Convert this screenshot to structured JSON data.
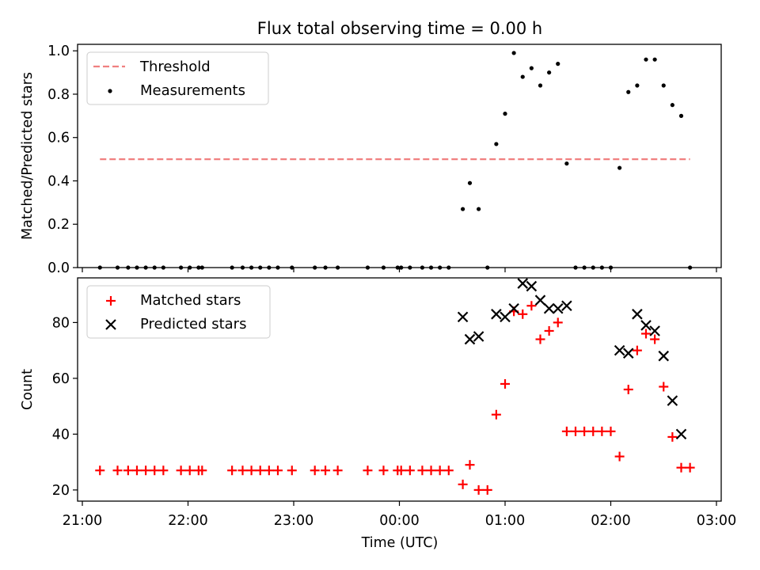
{
  "title": "Flux total observing time = 0.00 h",
  "xlabel": "Time (UTC)",
  "x_ticks": [
    "21:00",
    "22:00",
    "23:00",
    "00:00",
    "01:00",
    "02:00",
    "03:00"
  ],
  "chart_data": [
    {
      "type": "scatter",
      "panel": "top",
      "ylabel": "Matched/Predicted stars",
      "xlim": [
        "21:00",
        "03:00"
      ],
      "ylim": [
        0,
        1.03
      ],
      "y_ticks": [
        "0.0",
        "0.2",
        "0.4",
        "0.6",
        "0.8",
        "1.0"
      ],
      "legend_position": "top-left",
      "series": [
        {
          "name": "Threshold",
          "kind": "dashed-line",
          "color": "#f08080",
          "x": [
            "21:10",
            "02:45"
          ],
          "y": [
            0.5,
            0.5
          ]
        },
        {
          "name": "Measurements",
          "kind": "dot",
          "color": "#000000",
          "x": [
            "21:10",
            "21:20",
            "21:26",
            "21:31",
            "21:36",
            "21:41",
            "21:46",
            "21:56",
            "22:01",
            "22:06",
            "22:08",
            "22:25",
            "22:31",
            "22:36",
            "22:41",
            "22:46",
            "22:51",
            "22:59",
            "23:12",
            "23:18",
            "23:25",
            "23:42",
            "23:51",
            "23:59",
            "24:01",
            "24:06",
            "24:13",
            "24:18",
            "24:23",
            "24:28",
            "24:36",
            "24:40",
            "24:45",
            "24:50",
            "24:55",
            "25:00",
            "25:05",
            "25:10",
            "25:15",
            "25:20",
            "25:25",
            "25:30",
            "25:35",
            "25:40",
            "25:45",
            "25:50",
            "25:55",
            "26:00",
            "26:05",
            "26:10",
            "26:15",
            "26:20",
            "26:25",
            "26:30",
            "26:35",
            "26:40",
            "26:45"
          ],
          "y": [
            0,
            0,
            0,
            0,
            0,
            0,
            0,
            0,
            0,
            0,
            0,
            0,
            0,
            0,
            0,
            0,
            0,
            0,
            0,
            0,
            0,
            0,
            0,
            0,
            0,
            0,
            0,
            0,
            0,
            0,
            0.27,
            0.39,
            0.27,
            0,
            0.57,
            0.71,
            0.99,
            0.88,
            0.92,
            0.84,
            0.9,
            0.94,
            0.48,
            0,
            0,
            0,
            0,
            0,
            0.46,
            0.81,
            0.84,
            0.96,
            0.96,
            0.84,
            0.75,
            0.7,
            0
          ]
        }
      ]
    },
    {
      "type": "scatter",
      "panel": "bottom",
      "ylabel": "Count",
      "xlim": [
        "21:00",
        "03:00"
      ],
      "ylim": [
        16,
        96
      ],
      "y_ticks": [
        "20",
        "40",
        "60",
        "80"
      ],
      "legend_position": "top-left",
      "series": [
        {
          "name": "Matched stars",
          "kind": "plus",
          "color": "#ff0000",
          "x": [
            "21:10",
            "21:20",
            "21:26",
            "21:31",
            "21:36",
            "21:41",
            "21:46",
            "21:56",
            "22:01",
            "22:06",
            "22:08",
            "22:25",
            "22:31",
            "22:36",
            "22:41",
            "22:46",
            "22:51",
            "22:59",
            "23:12",
            "23:18",
            "23:25",
            "23:42",
            "23:51",
            "23:59",
            "24:01",
            "24:06",
            "24:13",
            "24:18",
            "24:23",
            "24:28",
            "24:36",
            "24:40",
            "24:45",
            "24:50",
            "24:55",
            "25:00",
            "25:05",
            "25:10",
            "25:15",
            "25:20",
            "25:25",
            "25:30",
            "25:35",
            "25:40",
            "25:45",
            "25:50",
            "25:55",
            "26:00",
            "26:05",
            "26:10",
            "26:15",
            "26:20",
            "26:25",
            "26:30",
            "26:35",
            "26:40",
            "26:45"
          ],
          "y": [
            27,
            27,
            27,
            27,
            27,
            27,
            27,
            27,
            27,
            27,
            27,
            27,
            27,
            27,
            27,
            27,
            27,
            27,
            27,
            27,
            27,
            27,
            27,
            27,
            27,
            27,
            27,
            27,
            27,
            27,
            22,
            29,
            20,
            20,
            47,
            58,
            84,
            83,
            86,
            74,
            77,
            80,
            41,
            41,
            41,
            41,
            41,
            41,
            32,
            56,
            70,
            76,
            74,
            57,
            39,
            28,
            28
          ]
        },
        {
          "name": "Predicted stars",
          "kind": "x",
          "color": "#000000",
          "x": [
            "24:36",
            "24:40",
            "24:45",
            "24:55",
            "25:00",
            "25:05",
            "25:10",
            "25:15",
            "25:20",
            "25:25",
            "25:30",
            "25:35",
            "26:05",
            "26:10",
            "26:15",
            "26:20",
            "26:25",
            "26:30",
            "26:35",
            "26:40"
          ],
          "y": [
            82,
            74,
            75,
            83,
            82,
            85,
            94,
            93,
            88,
            85,
            85,
            86,
            70,
            69,
            83,
            79,
            77,
            68,
            52,
            40
          ]
        }
      ]
    }
  ]
}
